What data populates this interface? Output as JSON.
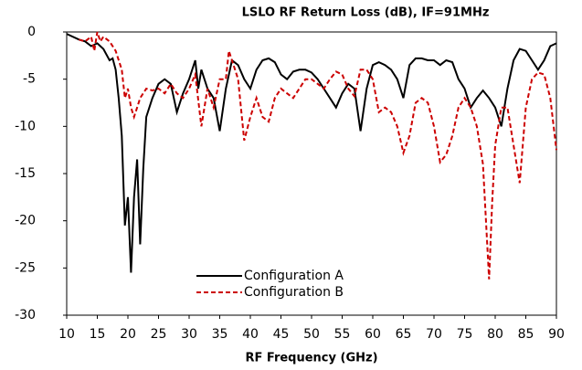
{
  "chart_data": {
    "type": "line",
    "title": "LSLO RF Return Loss (dB), IF=91MHz",
    "xlabel": "RF Frequency (GHz)",
    "xlim": [
      10,
      90
    ],
    "xticks": [
      10,
      15,
      20,
      25,
      30,
      35,
      40,
      45,
      50,
      55,
      60,
      65,
      70,
      75,
      80,
      85,
      90
    ],
    "ylim": [
      -30,
      0
    ],
    "yticks": [
      0,
      -5,
      -10,
      -15,
      -20,
      -25,
      -30
    ],
    "grid": false,
    "legend_loc": "lower center",
    "series": [
      {
        "name": "Configuration A",
        "color": "#000000",
        "dash": "solid",
        "x": [
          10,
          12,
          13,
          14,
          15,
          16,
          17,
          17.5,
          18,
          18.5,
          19,
          19.5,
          20,
          20.5,
          21,
          21.5,
          22,
          22.5,
          23,
          24,
          25,
          26,
          27,
          28,
          29,
          30,
          31,
          31.5,
          32,
          33,
          34,
          35,
          36,
          37,
          38,
          39,
          40,
          41,
          42,
          43,
          44,
          45,
          46,
          47,
          48,
          49,
          50,
          51,
          52,
          53,
          54,
          55,
          56,
          57,
          58,
          59,
          60,
          61,
          62,
          63,
          64,
          65,
          66,
          67,
          68,
          69,
          70,
          71,
          72,
          73,
          74,
          75,
          76,
          77,
          78,
          79,
          80,
          81,
          82,
          83,
          84,
          85,
          86,
          87,
          88,
          89,
          90
        ],
        "values": [
          -0.2,
          -0.8,
          -1,
          -1.5,
          -1.2,
          -1.8,
          -3,
          -2.8,
          -4,
          -7,
          -11,
          -20.5,
          -17.5,
          -25.5,
          -17.5,
          -13.5,
          -22.5,
          -14.5,
          -9,
          -7,
          -5.5,
          -5,
          -5.5,
          -8.5,
          -6.5,
          -5,
          -3,
          -6,
          -4,
          -6,
          -7,
          -10.5,
          -6,
          -3,
          -3.5,
          -5,
          -6,
          -4,
          -3,
          -2.8,
          -3.2,
          -4.5,
          -5,
          -4.2,
          -4,
          -4,
          -4.3,
          -5,
          -6,
          -7,
          -8,
          -6.5,
          -5.5,
          -6,
          -10.5,
          -6,
          -3.5,
          -3.2,
          -3.5,
          -4,
          -5,
          -7,
          -3.5,
          -2.8,
          -2.8,
          -3,
          -3,
          -3.5,
          -3,
          -3.2,
          -5,
          -6,
          -8,
          -7,
          -6.2,
          -7,
          -8,
          -10,
          -6,
          -3,
          -1.8,
          -2,
          -3,
          -4,
          -3,
          -1.5,
          -1.2
        ]
      },
      {
        "name": "Configuration B",
        "color": "#cc0000",
        "dash": "dashed",
        "x": [
          12,
          13,
          14,
          14.5,
          15,
          15.5,
          16,
          17,
          18,
          19,
          19.5,
          20,
          20.5,
          21,
          21.5,
          22,
          23,
          24,
          25,
          26,
          27,
          28,
          29,
          30,
          31,
          32,
          33,
          34,
          35,
          36,
          36.5,
          37,
          38,
          39,
          40,
          41,
          42,
          43,
          44,
          45,
          46,
          47,
          48,
          49,
          50,
          51,
          52,
          53,
          54,
          55,
          56,
          57,
          58,
          59,
          60,
          61,
          62,
          63,
          64,
          65,
          66,
          67,
          68,
          69,
          70,
          71,
          72,
          73,
          74,
          75,
          76,
          77,
          78,
          79,
          79.5,
          80,
          81,
          82,
          83,
          84,
          85,
          86,
          87,
          88,
          89,
          90
        ],
        "values": [
          -0.8,
          -1,
          -0.5,
          -2,
          0,
          -1,
          -0.5,
          -1,
          -2,
          -4,
          -7,
          -6,
          -8,
          -9,
          -8,
          -7,
          -6,
          -6.2,
          -6,
          -6.5,
          -5.5,
          -6.5,
          -7,
          -6,
          -4.5,
          -10,
          -6,
          -8,
          -5,
          -5,
          -2,
          -3,
          -5,
          -11.5,
          -9,
          -7,
          -9,
          -9.5,
          -7,
          -6,
          -6.5,
          -7,
          -6,
          -5,
          -5,
          -5.5,
          -6,
          -5,
          -4.2,
          -4.5,
          -6,
          -6.8,
          -4,
          -4,
          -5,
          -8.5,
          -8,
          -8.5,
          -10,
          -12.8,
          -11,
          -7.5,
          -7,
          -7.5,
          -10,
          -13.8,
          -13,
          -11,
          -8,
          -7,
          -8,
          -10,
          -14,
          -26.2,
          -18,
          -12,
          -8,
          -8,
          -12,
          -16,
          -8,
          -5,
          -4.3,
          -4.5,
          -7,
          -12.5
        ]
      }
    ]
  }
}
